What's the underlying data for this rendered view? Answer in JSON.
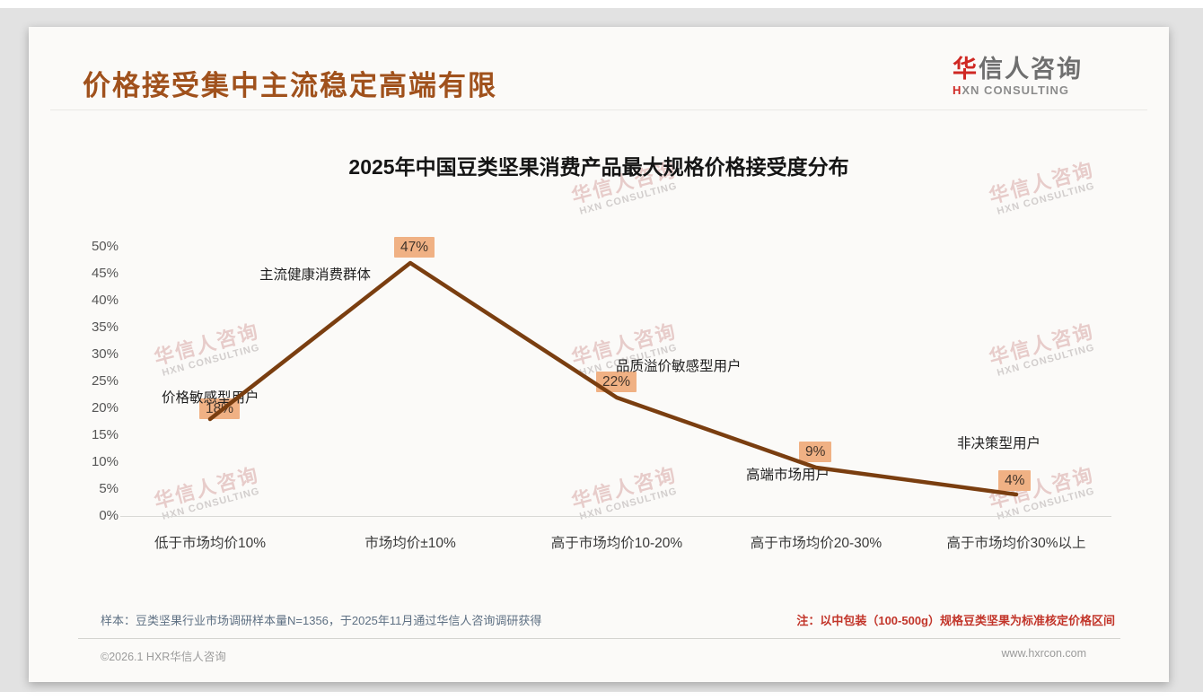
{
  "header": {
    "title": "价格接受集中主流稳定高端有限",
    "logo": {
      "cn_accent": "华",
      "cn_rest": "信人咨询",
      "en_accent": "H",
      "en_rest": "XN CONSULTING"
    }
  },
  "chart_data": {
    "type": "line",
    "title": "2025年中国豆类坚果消费产品最大规格价格接受度分布",
    "categories": [
      "低于市场均价10%",
      "市场均价±10%",
      "高于市场均价10-20%",
      "高于市场均价20-30%",
      "高于市场均价30%以上"
    ],
    "values": [
      18,
      47,
      22,
      9,
      4
    ],
    "value_labels": [
      "18%",
      "47%",
      "22%",
      "9%",
      "4%"
    ],
    "point_annotations": [
      "价格敏感型用户",
      "主流健康消费群体",
      "品质溢价敏感型用户",
      "高端市场用户",
      "非决策型用户"
    ],
    "xlabel": "",
    "ylabel": "",
    "ylim": [
      0,
      50
    ],
    "ytick_step": 5,
    "ytick_labels": [
      "0%",
      "5%",
      "10%",
      "15%",
      "20%",
      "25%",
      "30%",
      "35%",
      "40%",
      "45%",
      "50%"
    ],
    "grid": "baseline-only",
    "legend": "none",
    "line_color": "#7a3e10",
    "label_bg_color": "#f0b184"
  },
  "watermark": {
    "line1": "华信人咨询",
    "line2": "HXN CONSULTING"
  },
  "footer": {
    "sample_note": "样本：豆类坚果行业市场调研样本量N=1356，于2025年11月通过华信人咨询调研获得",
    "right_note": "注：以中包装（100-500g）规格豆类坚果为标准核定价格区间",
    "copyright": "©2026.1 HXR华信人咨询",
    "website": "www.hxrcon.com"
  }
}
